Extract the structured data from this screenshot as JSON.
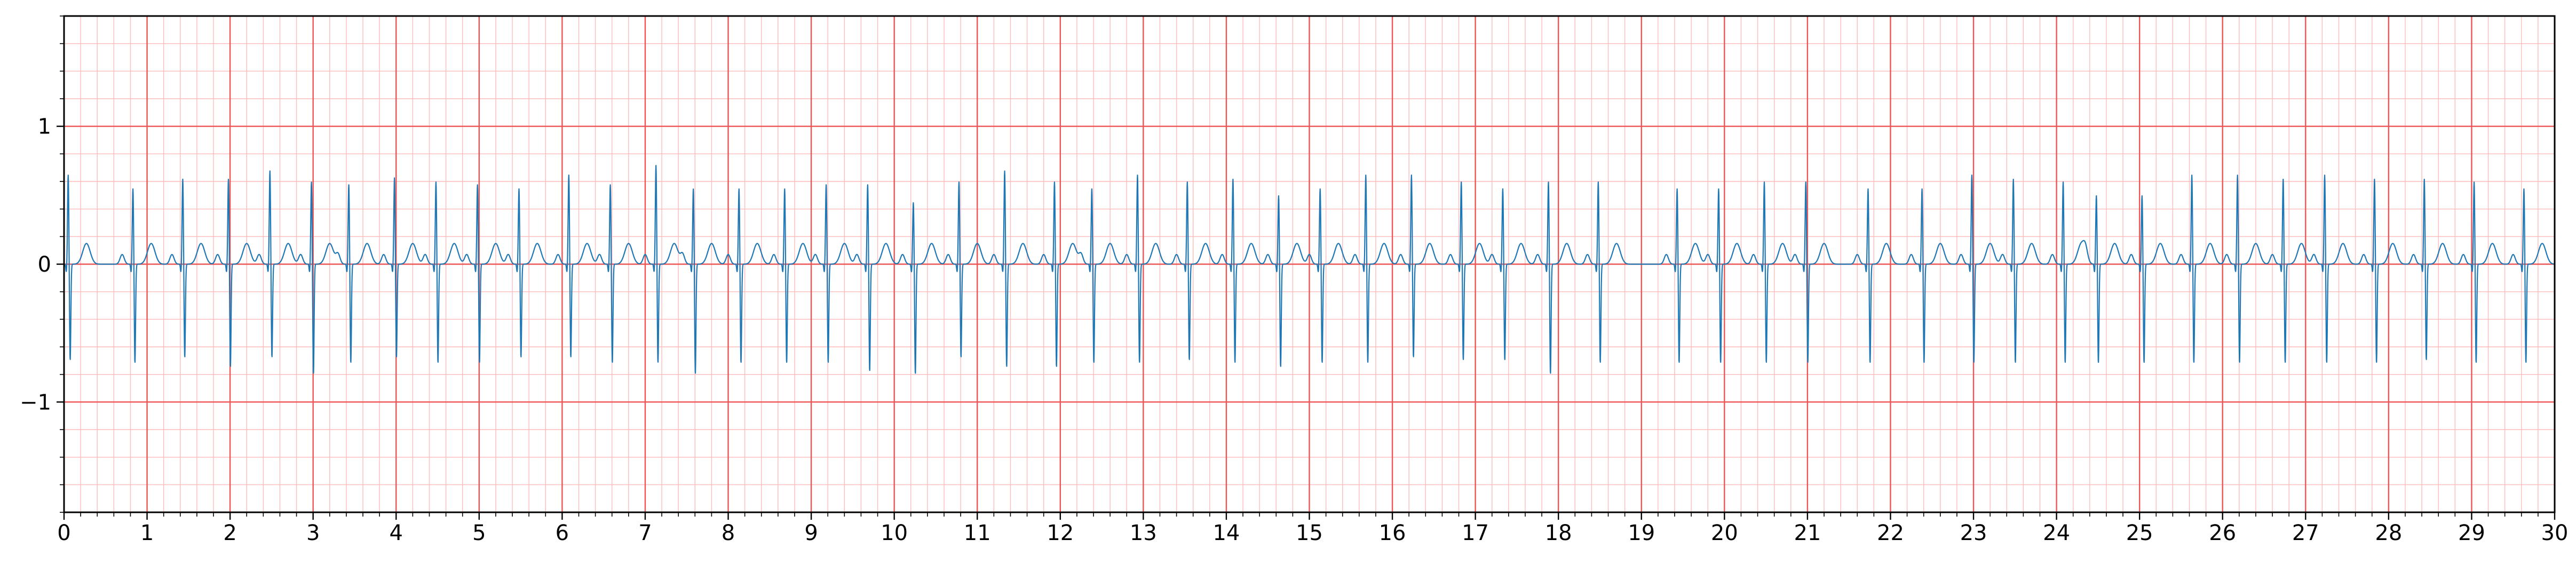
{
  "chart_data": {
    "type": "line",
    "title": "",
    "xlabel": "",
    "ylabel": "",
    "xlim": [
      0,
      30
    ],
    "ylim": [
      -1.8,
      1.8
    ],
    "x_ticks": [
      0,
      1,
      2,
      3,
      4,
      5,
      6,
      7,
      8,
      9,
      10,
      11,
      12,
      13,
      14,
      15,
      16,
      17,
      18,
      19,
      20,
      21,
      22,
      23,
      24,
      25,
      26,
      27,
      28,
      29,
      30
    ],
    "x_tick_labels": [
      "0",
      "1",
      "2",
      "3",
      "4",
      "5",
      "6",
      "7",
      "8",
      "9",
      "10",
      "11",
      "12",
      "13",
      "14",
      "15",
      "16",
      "17",
      "18",
      "19",
      "20",
      "21",
      "22",
      "23",
      "24",
      "25",
      "26",
      "27",
      "28",
      "29",
      "30"
    ],
    "y_ticks": [
      -1,
      0,
      1
    ],
    "y_tick_labels": [
      "−1",
      "0",
      "1"
    ],
    "grid": "ECG paper: major lines every 1 s and 1 mV, minor lines every 0.2 s and 0.2 mV",
    "series": [
      {
        "name": "ECG signal",
        "beat_times": [
          0.05,
          0.83,
          1.43,
          1.98,
          2.48,
          2.98,
          3.43,
          3.98,
          4.48,
          4.98,
          5.48,
          6.08,
          6.58,
          7.13,
          7.58,
          8.13,
          8.68,
          9.18,
          9.68,
          10.23,
          10.78,
          11.33,
          11.93,
          12.38,
          12.93,
          13.53,
          14.08,
          14.63,
          15.13,
          15.68,
          16.23,
          16.83,
          17.33,
          17.88,
          18.48,
          19.43,
          19.93,
          20.48,
          20.98,
          21.73,
          22.38,
          22.98,
          23.48,
          24.08,
          24.48,
          25.03,
          25.63,
          26.18,
          26.73,
          27.23,
          27.83,
          28.43,
          29.03,
          29.63
        ],
        "r_peaks": [
          0.65,
          0.55,
          0.62,
          0.62,
          0.68,
          0.6,
          0.58,
          0.63,
          0.6,
          0.58,
          0.55,
          0.65,
          0.58,
          0.72,
          0.55,
          0.55,
          0.55,
          0.58,
          0.58,
          0.45,
          0.6,
          0.68,
          0.6,
          0.55,
          0.65,
          0.6,
          0.62,
          0.5,
          0.55,
          0.65,
          0.65,
          0.6,
          0.55,
          0.6,
          0.6,
          0.55,
          0.55,
          0.6,
          0.6,
          0.55,
          0.55,
          0.65,
          0.62,
          0.6,
          0.5,
          0.5,
          0.65,
          0.65,
          0.62,
          0.65,
          0.62,
          0.62,
          0.6,
          0.55
        ],
        "s_troughs": [
          -0.7,
          -0.72,
          -0.68,
          -0.75,
          -0.68,
          -0.8,
          -0.72,
          -0.68,
          -0.72,
          -0.72,
          -0.68,
          -0.68,
          -0.72,
          -0.72,
          -0.8,
          -0.72,
          -0.72,
          -0.72,
          -0.78,
          -0.8,
          -0.68,
          -0.75,
          -0.75,
          -0.72,
          -0.72,
          -0.7,
          -0.72,
          -0.75,
          -0.72,
          -0.72,
          -0.68,
          -0.7,
          -0.7,
          -0.8,
          -0.72,
          -0.72,
          -0.72,
          -0.72,
          -0.72,
          -0.72,
          -0.72,
          -0.72,
          -0.72,
          -0.72,
          -0.72,
          -0.72,
          -0.72,
          -0.72,
          -0.72,
          -0.72,
          -0.72,
          -0.7,
          -0.72,
          -0.72
        ],
        "t_wave_amplitude": 0.15,
        "baseline": 0.0
      }
    ]
  }
}
